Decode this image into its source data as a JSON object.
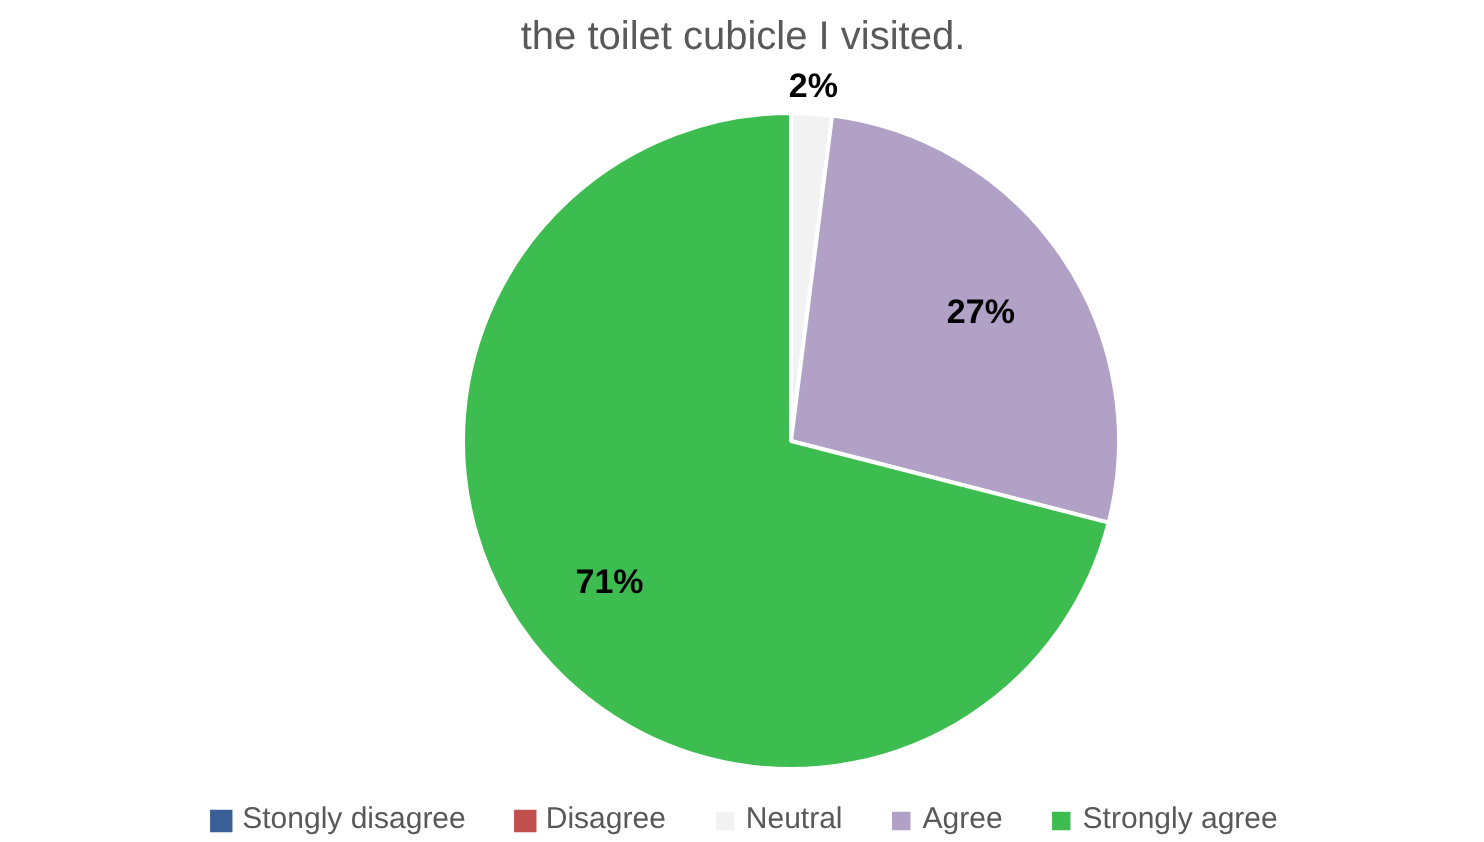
{
  "chart_data": {
    "type": "pie",
    "title": "the toilet cubicle I visited.",
    "categories": [
      "Stongly disagree",
      "Disagree",
      "Neutral",
      "Agree",
      "Strongly agree"
    ],
    "values": [
      0,
      0,
      2,
      27,
      71
    ],
    "colors": [
      "#3a5f96",
      "#c0504d",
      "#f2f2f2",
      "#b2a1c7",
      "#3dbd50"
    ],
    "value_labels": [
      null,
      null,
      "2%",
      "27%",
      "71%"
    ],
    "legend": "bottom"
  }
}
